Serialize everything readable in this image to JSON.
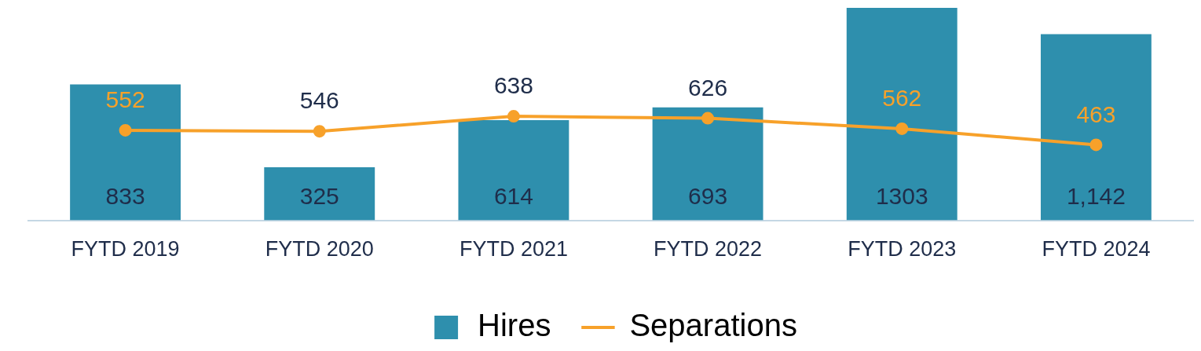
{
  "chart_data": {
    "type": "bar",
    "categories": [
      "FYTD 2019",
      "FYTD 2020",
      "FYTD 2021",
      "FYTD 2022",
      "FYTD 2023",
      "FYTD 2024"
    ],
    "series": [
      {
        "name": "Hires",
        "color": "#2e8fad",
        "values": [
          833,
          325,
          614,
          693,
          1303,
          1142
        ],
        "value_labels": [
          "833",
          "325",
          "614",
          "693",
          "1303",
          "1,142"
        ]
      },
      {
        "name": "Separations",
        "type": "line",
        "color": "#f7a12a",
        "values": [
          552,
          546,
          638,
          626,
          562,
          463
        ]
      }
    ],
    "ylim": [
      0,
      1303
    ],
    "data_labels": true,
    "legend": "bottom",
    "marker": "circle",
    "line_style": "solid",
    "grid": false,
    "tick_labels": "x"
  }
}
